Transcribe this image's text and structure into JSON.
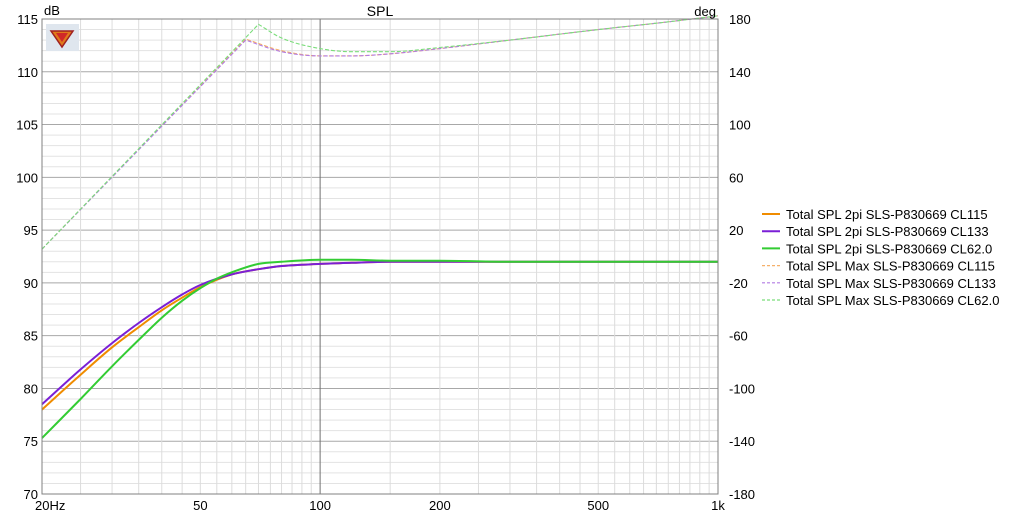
{
  "chart_data": {
    "type": "line",
    "title": "SPL",
    "ylabel_left": "dB",
    "ylabel_right": "deg",
    "x_scale": "log",
    "xlim": [
      20,
      1000
    ],
    "ylim_left": [
      70,
      115
    ],
    "ylim_right": [
      -180,
      180
    ],
    "x_ticks": [
      20,
      50,
      100,
      200,
      500,
      1000
    ],
    "x_tick_labels": [
      "20Hz",
      "50",
      "100",
      "200",
      "500",
      "1k"
    ],
    "y_left_ticks": [
      70,
      75,
      80,
      85,
      90,
      95,
      100,
      105,
      110,
      115
    ],
    "y_right_ticks": [
      -180,
      -140,
      -100,
      -60,
      -20,
      20,
      60,
      100,
      140,
      180
    ],
    "grid": true,
    "legend_position": "right",
    "logo_icon": "speaker-logo-icon",
    "series": [
      {
        "name": "Total SPL 2pi SLS-P830669 CL115",
        "color": "#f08c00",
        "style": "solid",
        "x": [
          20,
          25,
          30,
          35,
          40,
          45,
          50,
          60,
          70,
          80,
          100,
          120,
          150,
          200,
          300,
          500,
          700,
          1000
        ],
        "y": [
          78.0,
          81.3,
          83.9,
          85.8,
          87.4,
          88.6,
          89.6,
          90.8,
          91.3,
          91.6,
          91.8,
          91.9,
          92.0,
          92.0,
          92.0,
          92.0,
          92.0,
          92.0
        ]
      },
      {
        "name": "Total SPL 2pi SLS-P830669 CL133",
        "color": "#7a1fd6",
        "style": "solid",
        "x": [
          20,
          25,
          30,
          35,
          40,
          45,
          50,
          60,
          70,
          80,
          100,
          120,
          150,
          200,
          300,
          500,
          700,
          1000
        ],
        "y": [
          78.5,
          81.8,
          84.3,
          86.2,
          87.7,
          88.9,
          89.8,
          90.8,
          91.3,
          91.6,
          91.8,
          91.9,
          92.0,
          92.0,
          92.0,
          92.0,
          92.0,
          92.0
        ]
      },
      {
        "name": "Total SPL 2pi SLS-P830669 CL62.0",
        "color": "#33cc33",
        "style": "solid",
        "x": [
          20,
          25,
          30,
          35,
          40,
          45,
          50,
          55,
          60,
          70,
          80,
          100,
          120,
          150,
          200,
          300,
          500,
          700,
          1000
        ],
        "y": [
          75.3,
          79.0,
          82.1,
          84.6,
          86.7,
          88.3,
          89.5,
          90.4,
          91.0,
          91.8,
          92.0,
          92.2,
          92.2,
          92.1,
          92.1,
          92.0,
          92.0,
          92.0,
          92.0
        ]
      },
      {
        "name": "Total SPL Max SLS-P830669 CL115",
        "color": "#f5b06a",
        "style": "dashed",
        "x": [
          20,
          65,
          80,
          100,
          120,
          150,
          200,
          300,
          500,
          700,
          1000
        ],
        "y": [
          93.2,
          113.1,
          112.0,
          111.5,
          111.5,
          111.7,
          112.2,
          113.0,
          114.0,
          114.6,
          115.3
        ]
      },
      {
        "name": "Total SPL Max SLS-P830669 CL133",
        "color": "#b27be3",
        "style": "dashed",
        "x": [
          20,
          65,
          80,
          100,
          120,
          150,
          200,
          300,
          500,
          700,
          1000
        ],
        "y": [
          93.2,
          113.0,
          111.9,
          111.5,
          111.5,
          111.7,
          112.2,
          113.0,
          114.0,
          114.6,
          115.3
        ]
      },
      {
        "name": "Total SPL Max SLS-P830669 CL62.0",
        "color": "#7bdd7b",
        "style": "dashed",
        "x": [
          20,
          70,
          80,
          100,
          120,
          150,
          200,
          300,
          500,
          700,
          1000
        ],
        "y": [
          93.2,
          114.5,
          113.2,
          112.2,
          111.9,
          111.9,
          112.3,
          113.0,
          114.0,
          114.6,
          115.3
        ]
      }
    ]
  }
}
